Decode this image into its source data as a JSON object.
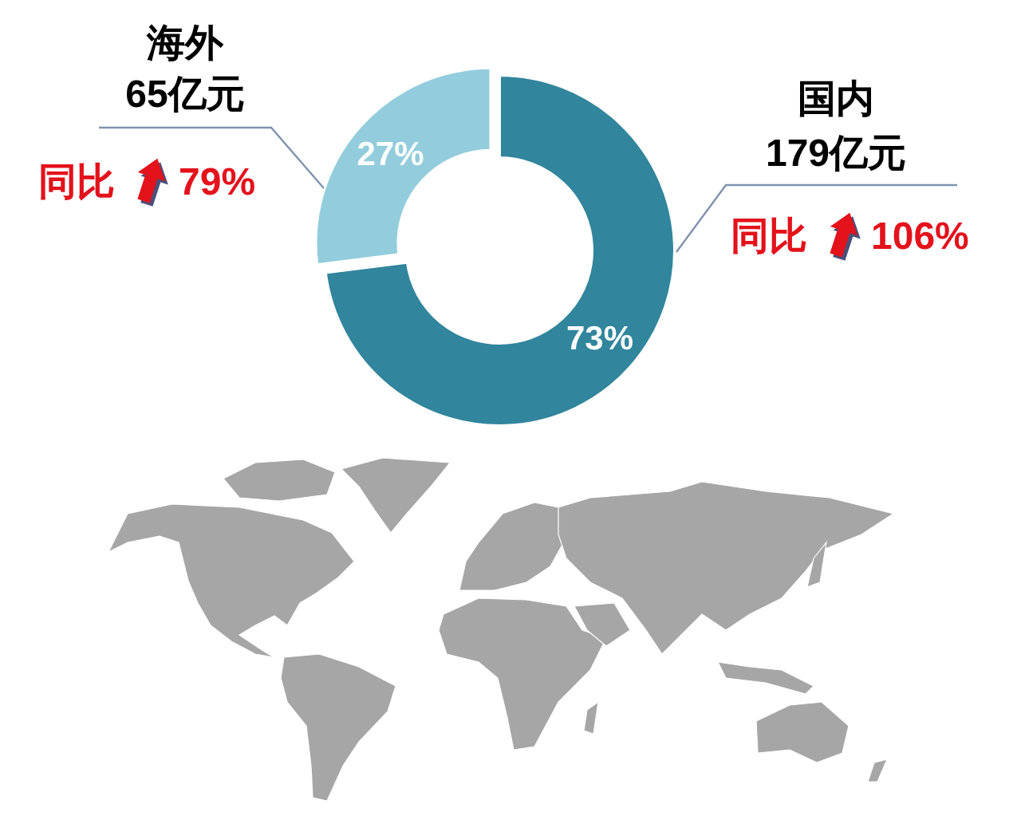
{
  "chart_data": {
    "type": "donut",
    "categories": [
      "国内",
      "海外"
    ],
    "values": [
      73,
      27
    ],
    "colors": [
      "#31859c",
      "#93cddd"
    ],
    "value_labels": [
      "73%",
      "27%"
    ],
    "annotations": [
      "65亿元",
      "同比",
      "79%",
      "179亿元",
      "同比",
      "106%"
    ]
  }
}
